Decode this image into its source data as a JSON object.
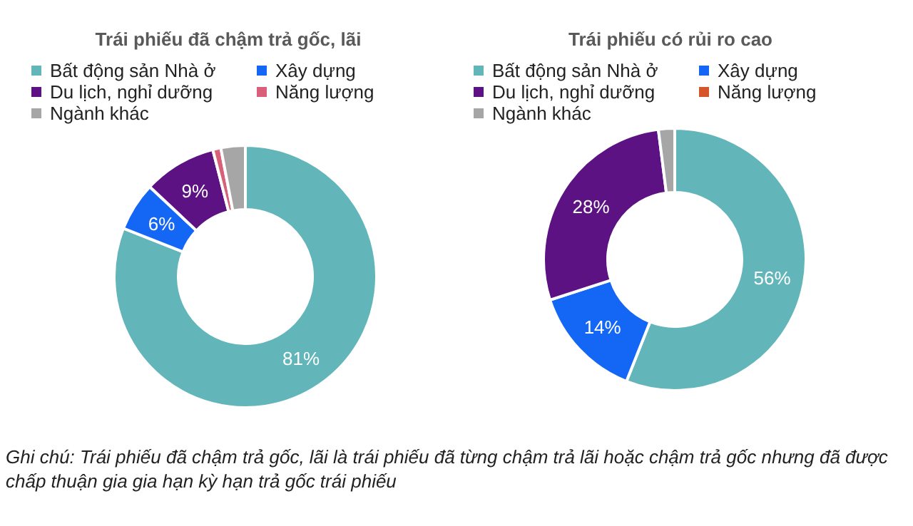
{
  "chart_data": [
    {
      "type": "donut",
      "title": "Trái phiếu đã chậm trả gốc, lãi",
      "categories": [
        "Bất động sản Nhà ở",
        "Xây dựng",
        "Du lịch, nghỉ dưỡng",
        "Năng lượng",
        "Ngành khác"
      ],
      "values": [
        81,
        6,
        9,
        1,
        3
      ],
      "colors": [
        "#62b5b9",
        "#1466f5",
        "#5c1283",
        "#d9607a",
        "#a6a6a6"
      ],
      "value_labels": [
        "81%",
        "6%",
        "9%",
        null,
        null
      ],
      "legend": "top"
    },
    {
      "type": "donut",
      "title": "Trái phiếu có rủi ro cao",
      "categories": [
        "Bất động sản Nhà ở",
        "Xây dựng",
        "Du lịch, nghỉ dưỡng",
        "Năng lượng",
        "Ngành khác"
      ],
      "values": [
        56,
        14,
        28,
        0,
        2
      ],
      "colors": [
        "#62b5b9",
        "#1466f5",
        "#5c1283",
        "#d4562a",
        "#a6a6a6"
      ],
      "value_labels": [
        "56%",
        "14%",
        "28%",
        null,
        null
      ],
      "legend": "top",
      "annotations": [
        "Ghi chú: Trái phiếu đã chậm trả gốc, lãi là trái phiếu đã từng chậm trả lãi hoặc chậm trả gốc nhưng đã được chấp thuận gia gia hạn kỳ hạn trả gốc trái phiếu"
      ]
    }
  ]
}
